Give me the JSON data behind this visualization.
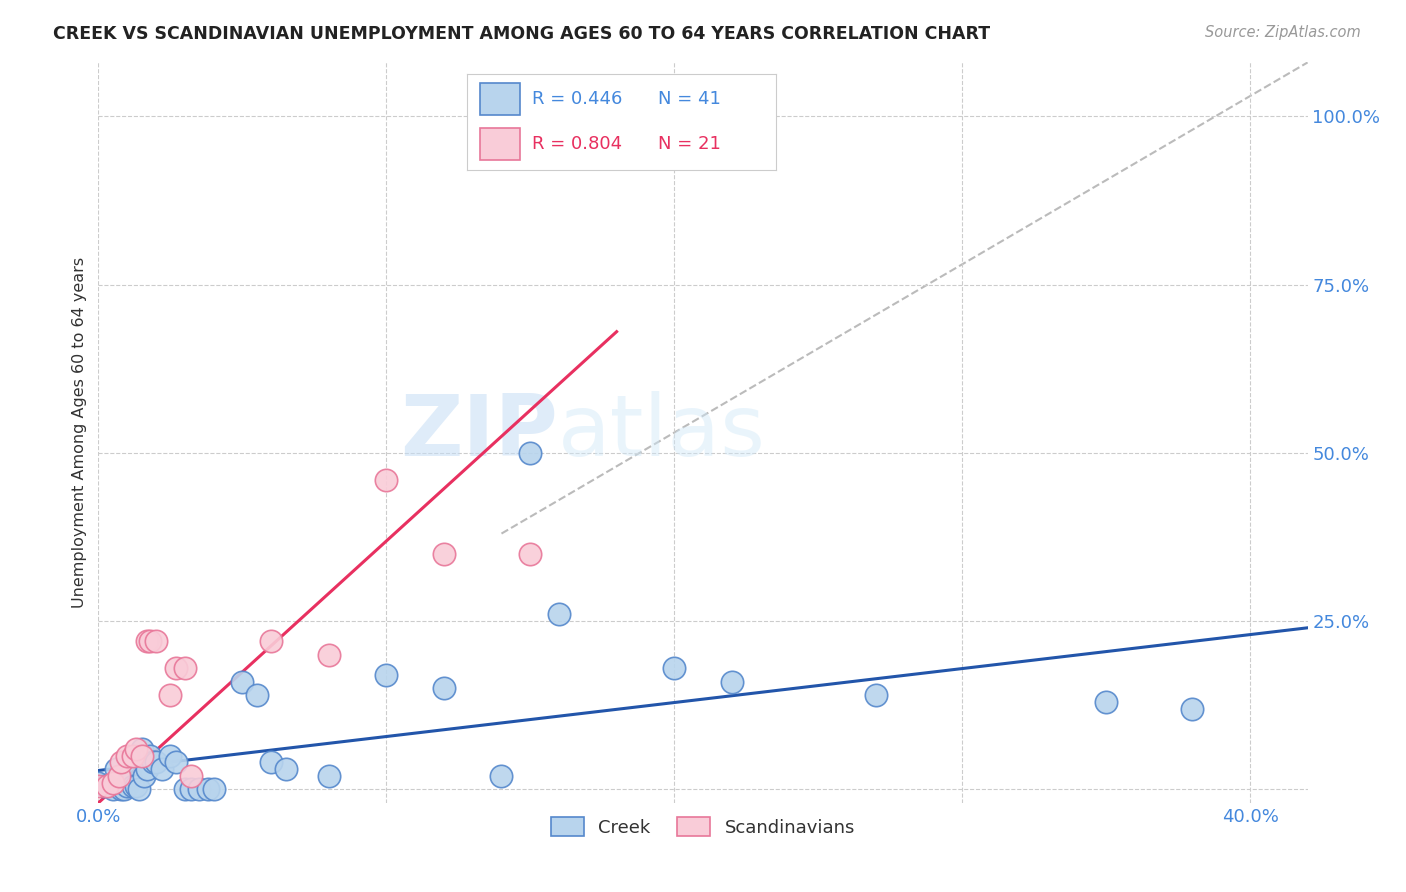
{
  "title": "CREEK VS SCANDINAVIAN UNEMPLOYMENT AMONG AGES 60 TO 64 YEARS CORRELATION CHART",
  "source": "Source: ZipAtlas.com",
  "ylabel": "Unemployment Among Ages 60 to 64 years",
  "xlim": [
    0.0,
    0.42
  ],
  "ylim": [
    -0.02,
    1.08
  ],
  "creek_color": "#b8d4ed",
  "creek_edge_color": "#5588cc",
  "scandinavian_color": "#f9ccd8",
  "scandinavian_edge_color": "#e87799",
  "creek_R": 0.446,
  "creek_N": 41,
  "scandinavian_R": 0.804,
  "scandinavian_N": 21,
  "trendline_creek_color": "#2255aa",
  "trendline_scandinavian_color": "#e83060",
  "trendline_ref_color": "#bbbbbb",
  "watermark_zip": "ZIP",
  "watermark_atlas": "atlas",
  "creek_points": [
    [
      0.0,
      0.01
    ],
    [
      0.002,
      0.005
    ],
    [
      0.004,
      0.005
    ],
    [
      0.005,
      0.0
    ],
    [
      0.006,
      0.03
    ],
    [
      0.008,
      0.0
    ],
    [
      0.009,
      0.0
    ],
    [
      0.01,
      0.005
    ],
    [
      0.011,
      0.02
    ],
    [
      0.012,
      0.005
    ],
    [
      0.013,
      0.005
    ],
    [
      0.014,
      0.0
    ],
    [
      0.015,
      0.06
    ],
    [
      0.016,
      0.02
    ],
    [
      0.017,
      0.03
    ],
    [
      0.018,
      0.05
    ],
    [
      0.019,
      0.04
    ],
    [
      0.02,
      0.04
    ],
    [
      0.022,
      0.03
    ],
    [
      0.025,
      0.05
    ],
    [
      0.027,
      0.04
    ],
    [
      0.03,
      0.0
    ],
    [
      0.032,
      0.0
    ],
    [
      0.035,
      0.0
    ],
    [
      0.038,
      0.0
    ],
    [
      0.04,
      0.0
    ],
    [
      0.05,
      0.16
    ],
    [
      0.055,
      0.14
    ],
    [
      0.06,
      0.04
    ],
    [
      0.065,
      0.03
    ],
    [
      0.08,
      0.02
    ],
    [
      0.1,
      0.17
    ],
    [
      0.12,
      0.15
    ],
    [
      0.14,
      0.02
    ],
    [
      0.15,
      0.5
    ],
    [
      0.16,
      0.26
    ],
    [
      0.2,
      0.18
    ],
    [
      0.22,
      0.16
    ],
    [
      0.27,
      0.14
    ],
    [
      0.35,
      0.13
    ],
    [
      0.38,
      0.12
    ]
  ],
  "scandinavian_points": [
    [
      0.0,
      0.005
    ],
    [
      0.003,
      0.005
    ],
    [
      0.005,
      0.01
    ],
    [
      0.007,
      0.02
    ],
    [
      0.008,
      0.04
    ],
    [
      0.01,
      0.05
    ],
    [
      0.012,
      0.05
    ],
    [
      0.013,
      0.06
    ],
    [
      0.015,
      0.05
    ],
    [
      0.017,
      0.22
    ],
    [
      0.018,
      0.22
    ],
    [
      0.02,
      0.22
    ],
    [
      0.025,
      0.14
    ],
    [
      0.027,
      0.18
    ],
    [
      0.03,
      0.18
    ],
    [
      0.032,
      0.02
    ],
    [
      0.06,
      0.22
    ],
    [
      0.08,
      0.2
    ],
    [
      0.1,
      0.46
    ],
    [
      0.12,
      0.35
    ],
    [
      0.15,
      0.35
    ]
  ],
  "creek_trend_x": [
    0.0,
    0.42
  ],
  "creek_trend_y": [
    0.028,
    0.24
  ],
  "scand_trend_x": [
    0.0,
    0.18
  ],
  "scand_trend_y": [
    -0.02,
    0.68
  ],
  "ref_line_x": [
    0.14,
    0.42
  ],
  "ref_line_y": [
    0.38,
    1.08
  ]
}
